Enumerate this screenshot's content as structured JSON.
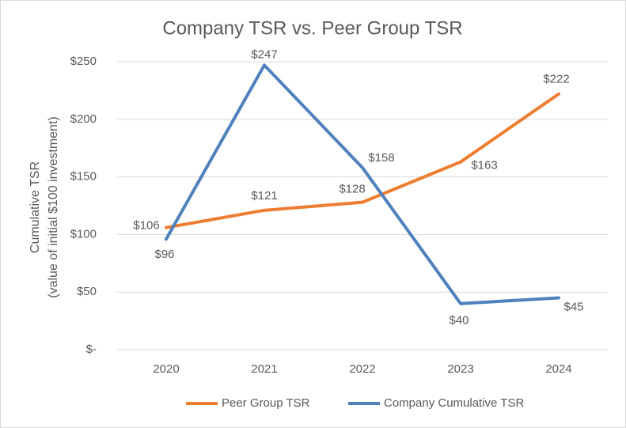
{
  "chart_data": {
    "type": "line",
    "title": "Company TSR vs. Peer Group TSR",
    "y_label": [
      "Cumulative TSR",
      "(value of initial $100 investment)"
    ],
    "categories": [
      "2020",
      "2021",
      "2022",
      "2023",
      "2024"
    ],
    "series": [
      {
        "name": "Peer Group TSR",
        "color": "#ed7d31",
        "values": [
          106,
          121,
          128,
          163,
          222
        ],
        "value_labels": [
          "$106",
          "$121",
          "$128",
          "$163",
          "$222"
        ]
      },
      {
        "name": "Company Cumulative TSR",
        "color": "#4f81bd",
        "values": [
          96,
          247,
          158,
          40,
          45
        ],
        "value_labels": [
          "$96",
          "$247",
          "$158",
          "$40",
          "$45"
        ]
      }
    ],
    "ylim": [
      0,
      250
    ],
    "yticks": [
      {
        "value": 0,
        "label": "$-"
      },
      {
        "value": 50,
        "label": "$50"
      },
      {
        "value": 100,
        "label": "$100"
      },
      {
        "value": 150,
        "label": "$150"
      },
      {
        "value": 200,
        "label": "$200"
      },
      {
        "value": 250,
        "label": "$250"
      }
    ],
    "grid": true
  }
}
